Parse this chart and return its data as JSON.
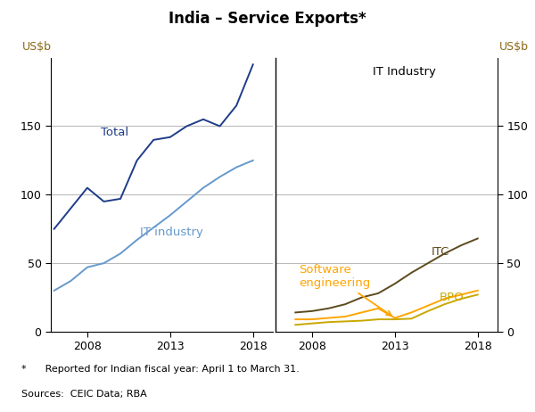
{
  "title": "India – Service Exports*",
  "ylabel_left": "US$b",
  "ylabel_right": "US$b",
  "footnote1": "*      Reported for Indian fiscal year: April 1 to March 31.",
  "footnote2": "Sources:  CEIC Data; RBA",
  "right_panel_label": "IT Industry",
  "ylim": [
    0,
    200
  ],
  "yticks": [
    0,
    50,
    100,
    150
  ],
  "left_xlim": [
    2005.8,
    2019.2
  ],
  "right_xlim": [
    2005.8,
    2019.2
  ],
  "left_xticks": [
    2008,
    2013,
    2018
  ],
  "right_xticks": [
    2008,
    2013,
    2018
  ],
  "total_years": [
    2006,
    2007,
    2008,
    2009,
    2010,
    2011,
    2012,
    2013,
    2014,
    2015,
    2016,
    2017,
    2018
  ],
  "total_values": [
    75,
    90,
    105,
    95,
    97,
    125,
    140,
    142,
    150,
    155,
    150,
    165,
    195
  ],
  "it_years": [
    2006,
    2007,
    2008,
    2009,
    2010,
    2011,
    2012,
    2013,
    2014,
    2015,
    2016,
    2017,
    2018
  ],
  "it_values": [
    30,
    37,
    47,
    50,
    57,
    67,
    76,
    85,
    95,
    105,
    113,
    120,
    125
  ],
  "itc_years": [
    2007,
    2008,
    2009,
    2010,
    2011,
    2012,
    2013,
    2014,
    2015,
    2016,
    2017,
    2018
  ],
  "itc_values": [
    14,
    15,
    17,
    20,
    25,
    28,
    35,
    43,
    50,
    57,
    63,
    68
  ],
  "bpo_years": [
    2007,
    2008,
    2009,
    2010,
    2011,
    2012,
    2013,
    2014,
    2015,
    2016,
    2017,
    2018
  ],
  "bpo_values": [
    5,
    6,
    7,
    7.5,
    8,
    9,
    9,
    9.5,
    15,
    20,
    24,
    27
  ],
  "softeng_years": [
    2007,
    2008,
    2009,
    2010,
    2011,
    2012,
    2013,
    2014,
    2015,
    2016,
    2017,
    2018
  ],
  "softeng_values": [
    9,
    9,
    10,
    11,
    14,
    17,
    10,
    14,
    19,
    24,
    27,
    30
  ],
  "color_total": "#1f3c88",
  "color_it": "#6699cc",
  "color_itc": "#5c4a1e",
  "color_bpo": "#c8a800",
  "color_softeng": "#ffa500",
  "arrow_color": "#ffa500",
  "divider_color": "#000000",
  "grid_color": "#bbbbbb",
  "tick_label_color": "#000000",
  "axis_label_color": "#8B6914"
}
